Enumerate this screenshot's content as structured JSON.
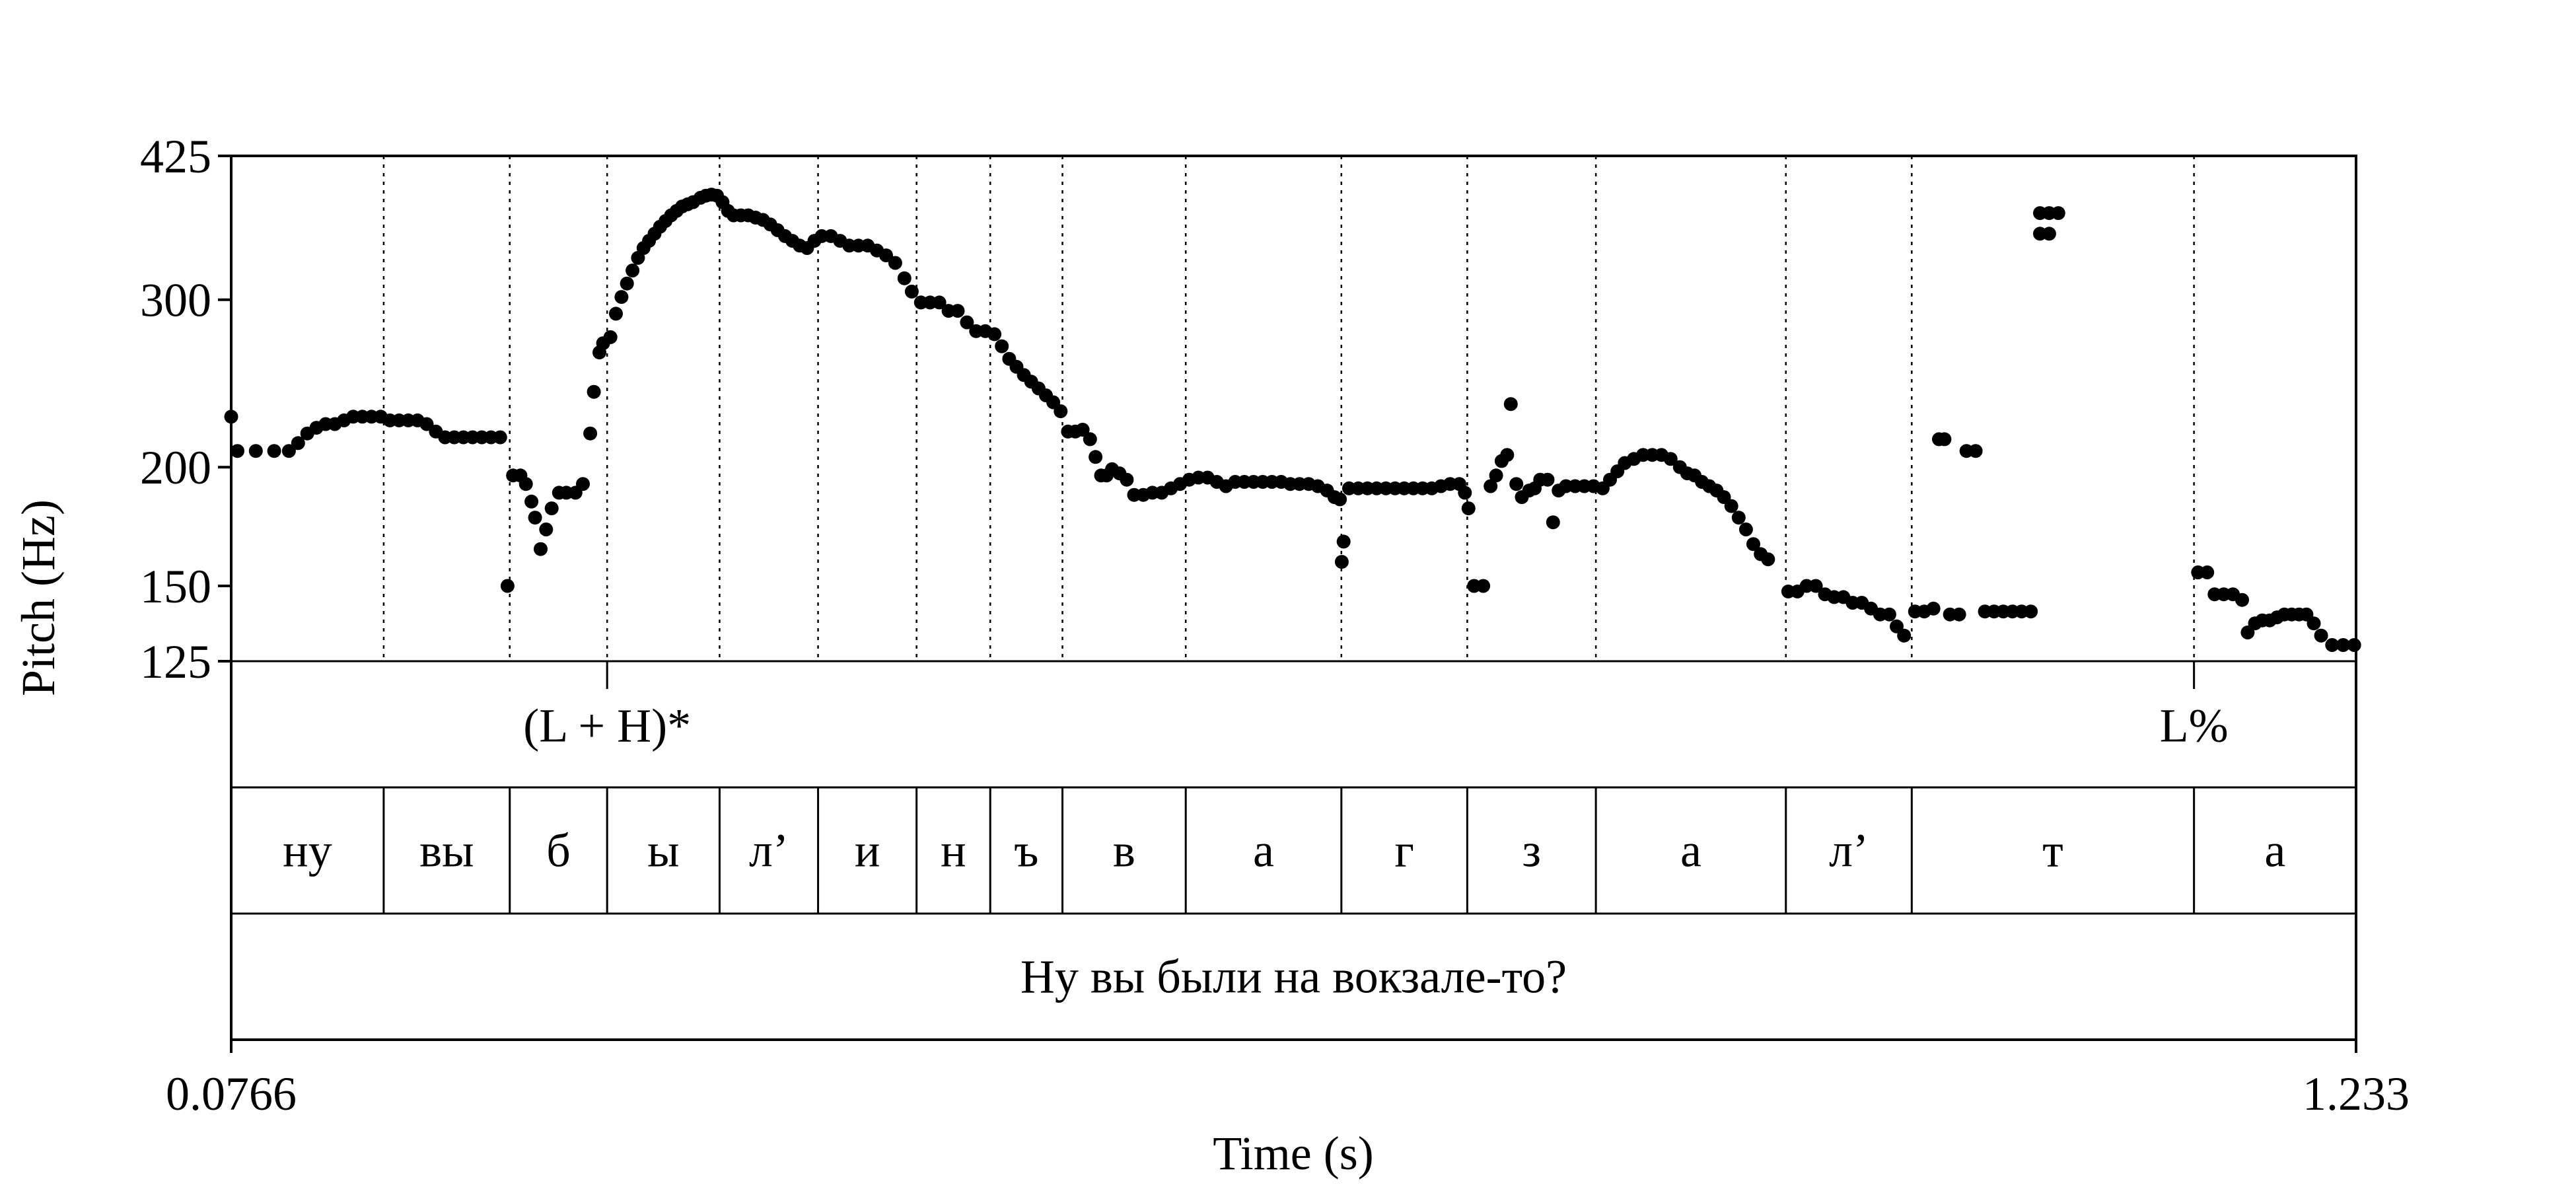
{
  "chart_data": {
    "type": "scatter",
    "xlabel": "Time (s)",
    "ylabel": "Pitch (Hz)",
    "xlim": [
      0.0766,
      1.233
    ],
    "ylim": [
      125,
      425
    ],
    "y_scale": "log",
    "x_tick_labels": [
      "0.0766",
      "1.233"
    ],
    "y_ticks": [
      125,
      150,
      200,
      300,
      425
    ],
    "boundaries": [
      0.1596,
      0.2282,
      0.2812,
      0.3424,
      0.396,
      0.4496,
      0.4897,
      0.529,
      0.5961,
      0.6808,
      0.7493,
      0.8193,
      0.9227,
      0.9912,
      1.1448
    ],
    "tiers": {
      "tones": [
        {
          "time": 0.2812,
          "label": "(L + H)*"
        },
        {
          "time": 1.1448,
          "label": "L%"
        }
      ],
      "segments": [
        {
          "start": 0.0766,
          "end": 0.1596,
          "label": "ну"
        },
        {
          "start": 0.1596,
          "end": 0.2282,
          "label": "вы"
        },
        {
          "start": 0.2282,
          "end": 0.2812,
          "label": "б"
        },
        {
          "start": 0.2812,
          "end": 0.3424,
          "label": "ы"
        },
        {
          "start": 0.3424,
          "end": 0.396,
          "label": "л’"
        },
        {
          "start": 0.396,
          "end": 0.4496,
          "label": "и"
        },
        {
          "start": 0.4496,
          "end": 0.4897,
          "label": "н"
        },
        {
          "start": 0.4897,
          "end": 0.529,
          "label": "ъ"
        },
        {
          "start": 0.529,
          "end": 0.5961,
          "label": "в"
        },
        {
          "start": 0.5961,
          "end": 0.6808,
          "label": "а"
        },
        {
          "start": 0.6808,
          "end": 0.7493,
          "label": "г"
        },
        {
          "start": 0.7493,
          "end": 0.8193,
          "label": "з"
        },
        {
          "start": 0.8193,
          "end": 0.9227,
          "label": "а"
        },
        {
          "start": 0.9227,
          "end": 0.9912,
          "label": "л’"
        },
        {
          "start": 0.9912,
          "end": 1.1448,
          "label": "т"
        },
        {
          "start": 1.1448,
          "end": 1.233,
          "label": "а"
        }
      ],
      "sentence": {
        "start": 0.0766,
        "end": 1.233,
        "label": "Ну вы были на вокзале-то?"
      }
    },
    "pitch_track": [
      [
        0.0766,
        226
      ],
      [
        0.08,
        208
      ],
      [
        0.09,
        208
      ],
      [
        0.1,
        208
      ],
      [
        0.108,
        208
      ],
      [
        0.113,
        212
      ],
      [
        0.118,
        217
      ],
      [
        0.123,
        220
      ],
      [
        0.128,
        222
      ],
      [
        0.133,
        222
      ],
      [
        0.138,
        224
      ],
      [
        0.143,
        226
      ],
      [
        0.148,
        226
      ],
      [
        0.153,
        226
      ],
      [
        0.158,
        226
      ],
      [
        0.163,
        224
      ],
      [
        0.168,
        224
      ],
      [
        0.173,
        224
      ],
      [
        0.178,
        224
      ],
      [
        0.183,
        222
      ],
      [
        0.188,
        218
      ],
      [
        0.193,
        215
      ],
      [
        0.198,
        215
      ],
      [
        0.203,
        215
      ],
      [
        0.208,
        215
      ],
      [
        0.213,
        215
      ],
      [
        0.218,
        215
      ],
      [
        0.223,
        215
      ],
      [
        0.227,
        150
      ],
      [
        0.23,
        196
      ],
      [
        0.234,
        196
      ],
      [
        0.237,
        192
      ],
      [
        0.24,
        184
      ],
      [
        0.242,
        177
      ],
      [
        0.245,
        164
      ],
      [
        0.248,
        172
      ],
      [
        0.251,
        181
      ],
      [
        0.255,
        188
      ],
      [
        0.259,
        188
      ],
      [
        0.264,
        188
      ],
      [
        0.268,
        192
      ],
      [
        0.272,
        217
      ],
      [
        0.274,
        240
      ],
      [
        0.277,
        264
      ],
      [
        0.279,
        270
      ],
      [
        0.283,
        274
      ],
      [
        0.286,
        290
      ],
      [
        0.289,
        302
      ],
      [
        0.292,
        312
      ],
      [
        0.295,
        322
      ],
      [
        0.298,
        332
      ],
      [
        0.301,
        340
      ],
      [
        0.304,
        346
      ],
      [
        0.307,
        352
      ],
      [
        0.31,
        358
      ],
      [
        0.313,
        363
      ],
      [
        0.316,
        368
      ],
      [
        0.319,
        372
      ],
      [
        0.322,
        376
      ],
      [
        0.325,
        378
      ],
      [
        0.328,
        380
      ],
      [
        0.332,
        384
      ],
      [
        0.335,
        386
      ],
      [
        0.338,
        387
      ],
      [
        0.341,
        386
      ],
      [
        0.344,
        380
      ],
      [
        0.347,
        372
      ],
      [
        0.35,
        368
      ],
      [
        0.354,
        368
      ],
      [
        0.358,
        368
      ],
      [
        0.362,
        366
      ],
      [
        0.366,
        364
      ],
      [
        0.37,
        360
      ],
      [
        0.374,
        355
      ],
      [
        0.378,
        350
      ],
      [
        0.382,
        346
      ],
      [
        0.386,
        342
      ],
      [
        0.39,
        340
      ],
      [
        0.394,
        346
      ],
      [
        0.398,
        350
      ],
      [
        0.403,
        350
      ],
      [
        0.408,
        346
      ],
      [
        0.413,
        342
      ],
      [
        0.418,
        342
      ],
      [
        0.423,
        342
      ],
      [
        0.428,
        338
      ],
      [
        0.433,
        334
      ],
      [
        0.438,
        328
      ],
      [
        0.443,
        316
      ],
      [
        0.447,
        306
      ],
      [
        0.452,
        298
      ],
      [
        0.457,
        298
      ],
      [
        0.462,
        298
      ],
      [
        0.467,
        292
      ],
      [
        0.472,
        292
      ],
      [
        0.477,
        284
      ],
      [
        0.482,
        278
      ],
      [
        0.487,
        278
      ],
      [
        0.492,
        276
      ],
      [
        0.496,
        268
      ],
      [
        0.5,
        260
      ],
      [
        0.504,
        255
      ],
      [
        0.508,
        250
      ],
      [
        0.512,
        246
      ],
      [
        0.516,
        242
      ],
      [
        0.52,
        238
      ],
      [
        0.524,
        234
      ],
      [
        0.528,
        229
      ],
      [
        0.532,
        218
      ],
      [
        0.536,
        218
      ],
      [
        0.54,
        219
      ],
      [
        0.544,
        214
      ],
      [
        0.547,
        205
      ],
      [
        0.55,
        196
      ],
      [
        0.553,
        196
      ],
      [
        0.556,
        199
      ],
      [
        0.56,
        197
      ],
      [
        0.564,
        194
      ],
      [
        0.568,
        187
      ],
      [
        0.573,
        187
      ],
      [
        0.578,
        188
      ],
      [
        0.583,
        188
      ],
      [
        0.588,
        190
      ],
      [
        0.593,
        192
      ],
      [
        0.598,
        194
      ],
      [
        0.603,
        195
      ],
      [
        0.608,
        195
      ],
      [
        0.613,
        193
      ],
      [
        0.618,
        191
      ],
      [
        0.623,
        193
      ],
      [
        0.628,
        193
      ],
      [
        0.633,
        193
      ],
      [
        0.638,
        193
      ],
      [
        0.643,
        193
      ],
      [
        0.648,
        193
      ],
      [
        0.653,
        192
      ],
      [
        0.658,
        192
      ],
      [
        0.663,
        192
      ],
      [
        0.668,
        191
      ],
      [
        0.673,
        189
      ],
      [
        0.677,
        186
      ],
      [
        0.68,
        185
      ],
      [
        0.681,
        159
      ],
      [
        0.682,
        167
      ],
      [
        0.685,
        190
      ],
      [
        0.69,
        190
      ],
      [
        0.695,
        190
      ],
      [
        0.7,
        190
      ],
      [
        0.705,
        190
      ],
      [
        0.71,
        190
      ],
      [
        0.715,
        190
      ],
      [
        0.72,
        190
      ],
      [
        0.725,
        190
      ],
      [
        0.73,
        190
      ],
      [
        0.735,
        191
      ],
      [
        0.74,
        192
      ],
      [
        0.745,
        192
      ],
      [
        0.748,
        188
      ],
      [
        0.75,
        181
      ],
      [
        0.753,
        150
      ],
      [
        0.758,
        150
      ],
      [
        0.762,
        191
      ],
      [
        0.765,
        196
      ],
      [
        0.768,
        203
      ],
      [
        0.771,
        206
      ],
      [
        0.773,
        233
      ],
      [
        0.776,
        192
      ],
      [
        0.779,
        186
      ],
      [
        0.783,
        189
      ],
      [
        0.786,
        190
      ],
      [
        0.789,
        194
      ],
      [
        0.793,
        194
      ],
      [
        0.796,
        175
      ],
      [
        0.799,
        189
      ],
      [
        0.803,
        191
      ],
      [
        0.808,
        191
      ],
      [
        0.813,
        191
      ],
      [
        0.818,
        191
      ],
      [
        0.823,
        190
      ],
      [
        0.827,
        194
      ],
      [
        0.831,
        198
      ],
      [
        0.835,
        202
      ],
      [
        0.84,
        204
      ],
      [
        0.845,
        206
      ],
      [
        0.85,
        206
      ],
      [
        0.855,
        206
      ],
      [
        0.86,
        204
      ],
      [
        0.865,
        200
      ],
      [
        0.869,
        197
      ],
      [
        0.873,
        196
      ],
      [
        0.877,
        193
      ],
      [
        0.881,
        191
      ],
      [
        0.885,
        189
      ],
      [
        0.889,
        186
      ],
      [
        0.893,
        182
      ],
      [
        0.897,
        177
      ],
      [
        0.901,
        172
      ],
      [
        0.905,
        166
      ],
      [
        0.909,
        162
      ],
      [
        0.913,
        160
      ],
      [
        0.924,
        148
      ],
      [
        0.929,
        148
      ],
      [
        0.934,
        150
      ],
      [
        0.939,
        150
      ],
      [
        0.944,
        147
      ],
      [
        0.949,
        146
      ],
      [
        0.954,
        146
      ],
      [
        0.959,
        144
      ],
      [
        0.964,
        144
      ],
      [
        0.969,
        142
      ],
      [
        0.974,
        140
      ],
      [
        0.979,
        140
      ],
      [
        0.983,
        136
      ],
      [
        0.987,
        133
      ],
      [
        0.993,
        141
      ],
      [
        0.998,
        141
      ],
      [
        1.003,
        142
      ],
      [
        1.006,
        214
      ],
      [
        1.009,
        214
      ],
      [
        1.012,
        140
      ],
      [
        1.017,
        140
      ],
      [
        1.021,
        208
      ],
      [
        1.026,
        208
      ],
      [
        1.031,
        141
      ],
      [
        1.036,
        141
      ],
      [
        1.041,
        141
      ],
      [
        1.046,
        141
      ],
      [
        1.051,
        141
      ],
      [
        1.056,
        141
      ],
      [
        1.061,
        370
      ],
      [
        1.066,
        370
      ],
      [
        1.061,
        352
      ],
      [
        1.066,
        352
      ],
      [
        1.071,
        370
      ],
      [
        1.147,
        155
      ],
      [
        1.152,
        155
      ],
      [
        1.156,
        147
      ],
      [
        1.161,
        147
      ],
      [
        1.166,
        147
      ],
      [
        1.171,
        145
      ],
      [
        1.174,
        134
      ],
      [
        1.178,
        137
      ],
      [
        1.182,
        138
      ],
      [
        1.186,
        138
      ],
      [
        1.19,
        139
      ],
      [
        1.194,
        140
      ],
      [
        1.198,
        140
      ],
      [
        1.202,
        140
      ],
      [
        1.206,
        140
      ],
      [
        1.21,
        137
      ],
      [
        1.214,
        133
      ],
      [
        1.22,
        130
      ],
      [
        1.226,
        130
      ],
      [
        1.232,
        130
      ]
    ]
  }
}
